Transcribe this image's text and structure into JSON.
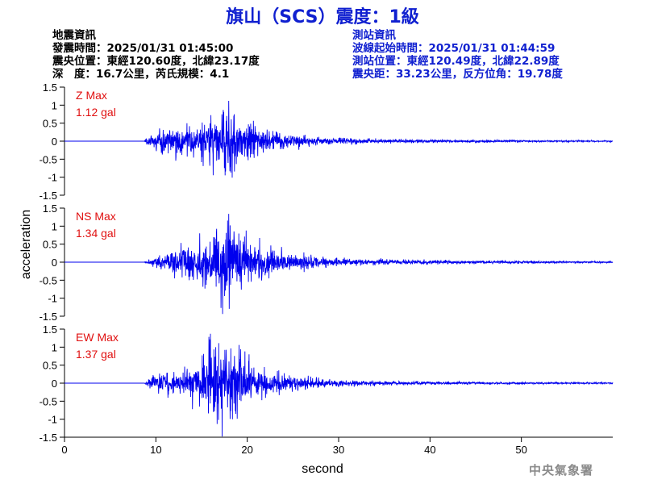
{
  "title": "旗山（SCS）震度：1級",
  "event_info": {
    "heading": "地震資訊",
    "time": "發震時間：2025/01/31 01:45:00",
    "location": "震央位置：東經120.60度，北緯23.17度",
    "depth": "深　度：16.7公里，芮氏規模：4.1"
  },
  "station_info": {
    "heading": "測站資訊",
    "wave_start": "波線起始時間：2025/01/31 01:44:59",
    "location": "測站位置：東經120.49度，北緯22.89度",
    "distance": "震央距：33.23公里，反方位角：19.78度"
  },
  "footer": "中央氣象署",
  "colors": {
    "trace": "#0000ee",
    "title": "#1020d0",
    "label": "#e01010"
  },
  "chart_data": {
    "type": "line",
    "xlabel": "second",
    "ylabel": "acceleration",
    "xlim": [
      0,
      60
    ],
    "ylim": [
      -1.5,
      1.5
    ],
    "xticks": [
      0,
      10,
      20,
      30,
      40,
      50
    ],
    "yticks": [
      1.5,
      1,
      0.5,
      0,
      -0.5,
      -1,
      -1.5
    ],
    "ytick_labels": [
      "1.5",
      "1",
      "0.5",
      "0",
      "-0.5",
      "-1",
      "-1.5"
    ],
    "grid": false,
    "series": [
      {
        "name": "Z",
        "label": "Z Max",
        "peak_text": "1.12 gal",
        "max": 1.12,
        "envelope": [
          [
            0,
            0
          ],
          [
            8.7,
            0
          ],
          [
            9,
            0.12
          ],
          [
            10,
            0.3
          ],
          [
            11,
            0.45
          ],
          [
            12,
            0.5
          ],
          [
            13,
            0.45
          ],
          [
            14,
            0.55
          ],
          [
            15,
            0.55
          ],
          [
            16,
            0.75
          ],
          [
            17,
            0.9
          ],
          [
            18,
            1.12
          ],
          [
            19,
            0.8
          ],
          [
            20,
            0.65
          ],
          [
            21,
            0.5
          ],
          [
            22,
            0.35
          ],
          [
            24,
            0.25
          ],
          [
            26,
            0.2
          ],
          [
            28,
            0.12
          ],
          [
            30,
            0.1
          ],
          [
            35,
            0.07
          ],
          [
            40,
            0.05
          ],
          [
            50,
            0.03
          ],
          [
            60,
            0.02
          ]
        ]
      },
      {
        "name": "NS",
        "label": "NS Max",
        "peak_text": "1.34 gal",
        "max": 1.34,
        "envelope": [
          [
            0,
            0
          ],
          [
            8.7,
            0
          ],
          [
            9,
            0.05
          ],
          [
            10,
            0.15
          ],
          [
            11,
            0.3
          ],
          [
            12,
            0.45
          ],
          [
            13,
            0.55
          ],
          [
            14,
            0.65
          ],
          [
            15,
            0.7
          ],
          [
            16,
            0.75
          ],
          [
            17,
            1.1
          ],
          [
            18,
            1.34
          ],
          [
            19,
            1.0
          ],
          [
            20,
            0.75
          ],
          [
            21,
            0.6
          ],
          [
            22,
            0.5
          ],
          [
            24,
            0.35
          ],
          [
            26,
            0.25
          ],
          [
            28,
            0.18
          ],
          [
            30,
            0.12
          ],
          [
            35,
            0.09
          ],
          [
            40,
            0.06
          ],
          [
            50,
            0.04
          ],
          [
            60,
            0.02
          ]
        ]
      },
      {
        "name": "EW",
        "label": "EW Max",
        "peak_text": "1.37 gal",
        "max": 1.37,
        "envelope": [
          [
            0,
            0
          ],
          [
            8.7,
            0
          ],
          [
            9,
            0.05
          ],
          [
            10,
            0.3
          ],
          [
            11,
            0.35
          ],
          [
            12,
            0.35
          ],
          [
            13,
            0.45
          ],
          [
            14,
            0.6
          ],
          [
            15,
            0.9
          ],
          [
            16,
            1.37
          ],
          [
            17,
            1.2
          ],
          [
            18,
            1.25
          ],
          [
            19,
            1.0
          ],
          [
            20,
            0.8
          ],
          [
            21,
            0.6
          ],
          [
            22,
            0.45
          ],
          [
            24,
            0.3
          ],
          [
            26,
            0.22
          ],
          [
            28,
            0.15
          ],
          [
            30,
            0.1
          ],
          [
            35,
            0.07
          ],
          [
            40,
            0.05
          ],
          [
            50,
            0.03
          ],
          [
            60,
            0.02
          ]
        ]
      }
    ]
  }
}
